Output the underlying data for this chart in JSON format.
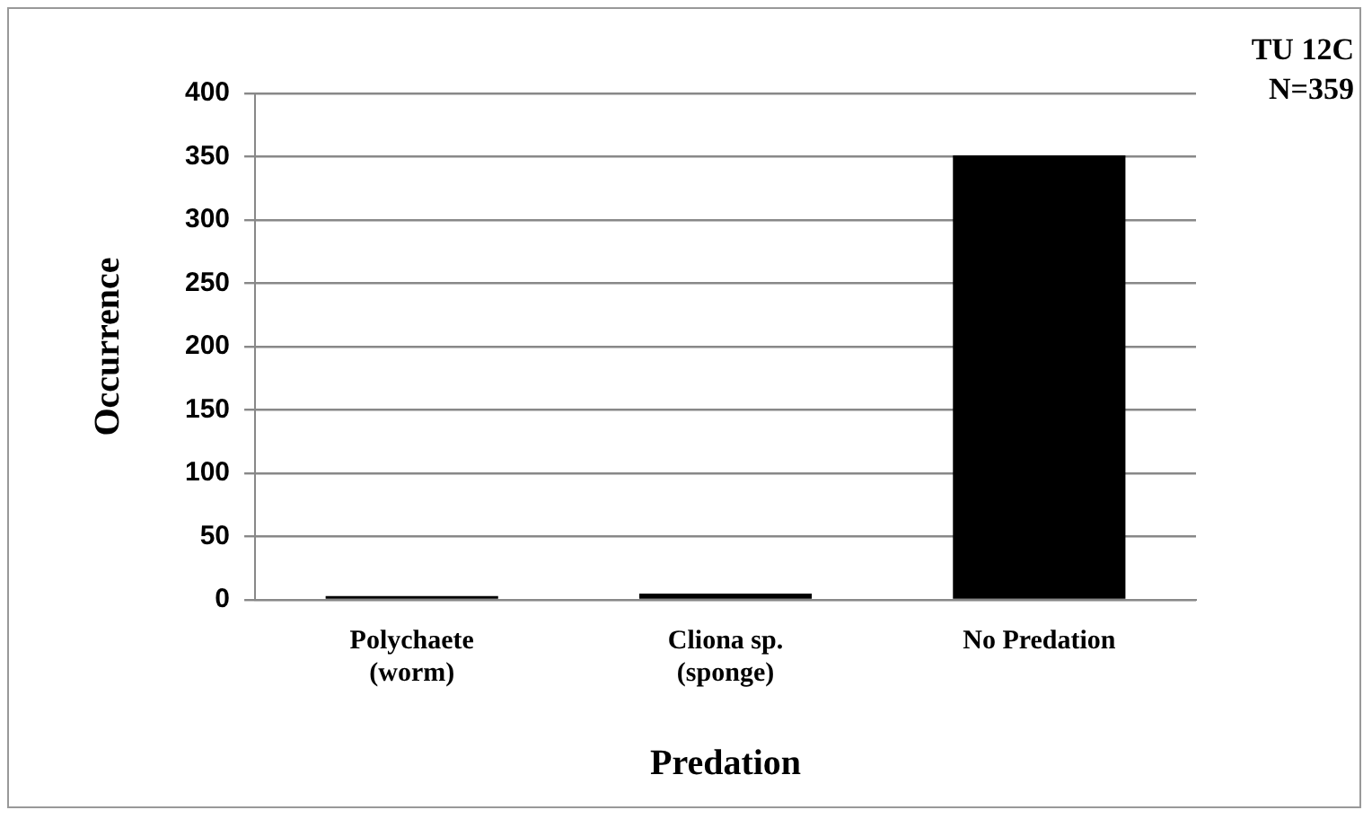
{
  "chart_data": {
    "type": "bar",
    "xlabel": "Predation",
    "ylabel": "Occurrence",
    "categories": [
      "Polychaete (worm)",
      "Cliona sp. (sponge)",
      "No Predation"
    ],
    "values": [
      3,
      5,
      351
    ],
    "color": "#000000",
    "ylim": [
      0,
      400
    ],
    "yticks": [
      0,
      50,
      100,
      150,
      200,
      250,
      300,
      350,
      400
    ],
    "grid": "y",
    "legend": false,
    "annotations": [
      "TU 12C",
      "N=359"
    ]
  }
}
